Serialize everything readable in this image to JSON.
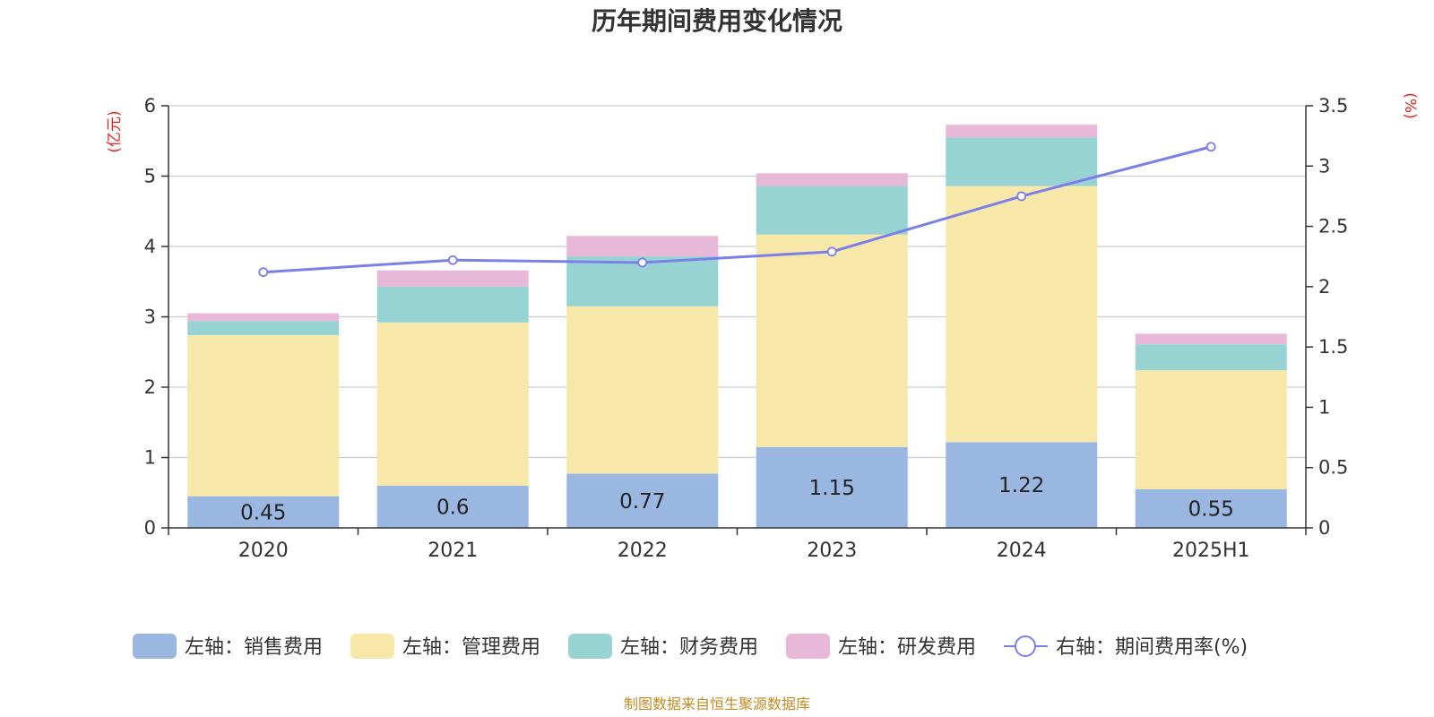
{
  "chart_data": {
    "type": "bar",
    "title": "历年期间费用变化情况",
    "left_unit": "(亿元)",
    "right_unit": "(%)",
    "categories": [
      "2020",
      "2021",
      "2022",
      "2023",
      "2024",
      "2025H1"
    ],
    "series": [
      {
        "name": "左轴：销售费用",
        "axis": "left",
        "kind": "bar",
        "color": "#9ab7e2",
        "values": [
          0.45,
          0.6,
          0.77,
          1.15,
          1.22,
          0.55
        ],
        "show_labels": true
      },
      {
        "name": "左轴：管理费用",
        "axis": "left",
        "kind": "bar",
        "color": "#f7e7a8",
        "values": [
          2.29,
          2.32,
          2.38,
          3.02,
          3.64,
          1.69
        ]
      },
      {
        "name": "左轴：财务费用",
        "axis": "left",
        "kind": "bar",
        "color": "#97d3d3",
        "values": [
          0.2,
          0.51,
          0.71,
          0.69,
          0.69,
          0.37
        ]
      },
      {
        "name": "左轴：研发费用",
        "axis": "left",
        "kind": "bar",
        "color": "#e7b8d8",
        "values": [
          0.11,
          0.23,
          0.29,
          0.18,
          0.18,
          0.15
        ]
      },
      {
        "name": "右轴：期间费用率(%)",
        "axis": "right",
        "kind": "line",
        "color": "#7b7fe8",
        "values": [
          2.12,
          2.22,
          2.2,
          2.29,
          2.75,
          3.16
        ]
      }
    ],
    "left_axis": {
      "min": 0,
      "max": 6,
      "ticks": [
        "0",
        "1",
        "2",
        "3",
        "4",
        "5",
        "6"
      ]
    },
    "right_axis": {
      "min": 0,
      "max": 3.5,
      "ticks": [
        "0",
        "0.5",
        "1",
        "1.5",
        "2",
        "2.5",
        "3",
        "3.5"
      ]
    },
    "grid": true,
    "legend_position": "bottom"
  },
  "source": "制图数据来自恒生聚源数据库"
}
